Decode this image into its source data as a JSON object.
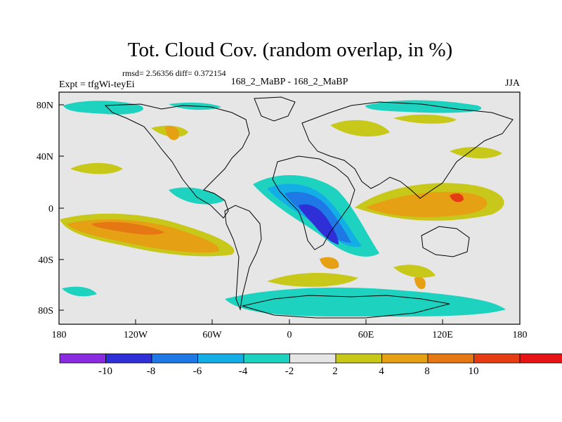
{
  "chart_data": {
    "type": "heatmap",
    "title": "Tot. Cloud Cov. (random overlap, in %)",
    "stats_text": "rmsd= 2.56356 diff= 0.372154",
    "expt_label": "Expt = tfgWi-teyEi",
    "center_label": "168_2_MaBP - 168_2_MaBP",
    "season_label": "JJA",
    "x_axis": {
      "range": [
        -180,
        180
      ],
      "tick_labels": [
        "180",
        "120W",
        "60W",
        "0",
        "60E",
        "120E",
        "180"
      ]
    },
    "y_axis": {
      "range": [
        -90,
        90
      ],
      "tick_labels": [
        "80N",
        "40N",
        "0",
        "40S",
        "80S"
      ]
    },
    "colorbar": {
      "labels": [
        "-10",
        "-8",
        "-6",
        "-4",
        "-2",
        "2",
        "4",
        "8",
        "10"
      ],
      "colors": [
        "#8a2be2",
        "#2f2fd8",
        "#1e78e6",
        "#14aee6",
        "#1ed2c0",
        "#e6e6e6",
        "#c8c81a",
        "#e6a014",
        "#e67814",
        "#e63c14",
        "#e61414"
      ]
    },
    "features": [
      {
        "name": "tropical east-central Pacific",
        "sign": "positive",
        "level": 8
      },
      {
        "name": "tropical Indian Ocean / Maritime Continent",
        "sign": "positive",
        "level": 10
      },
      {
        "name": "tropical Atlantic / west Africa",
        "sign": "negative",
        "level": -10
      },
      {
        "name": "southern Africa",
        "sign": "negative",
        "level": -8
      },
      {
        "name": "Southern Ocean",
        "sign": "negative",
        "level": -4
      }
    ]
  }
}
